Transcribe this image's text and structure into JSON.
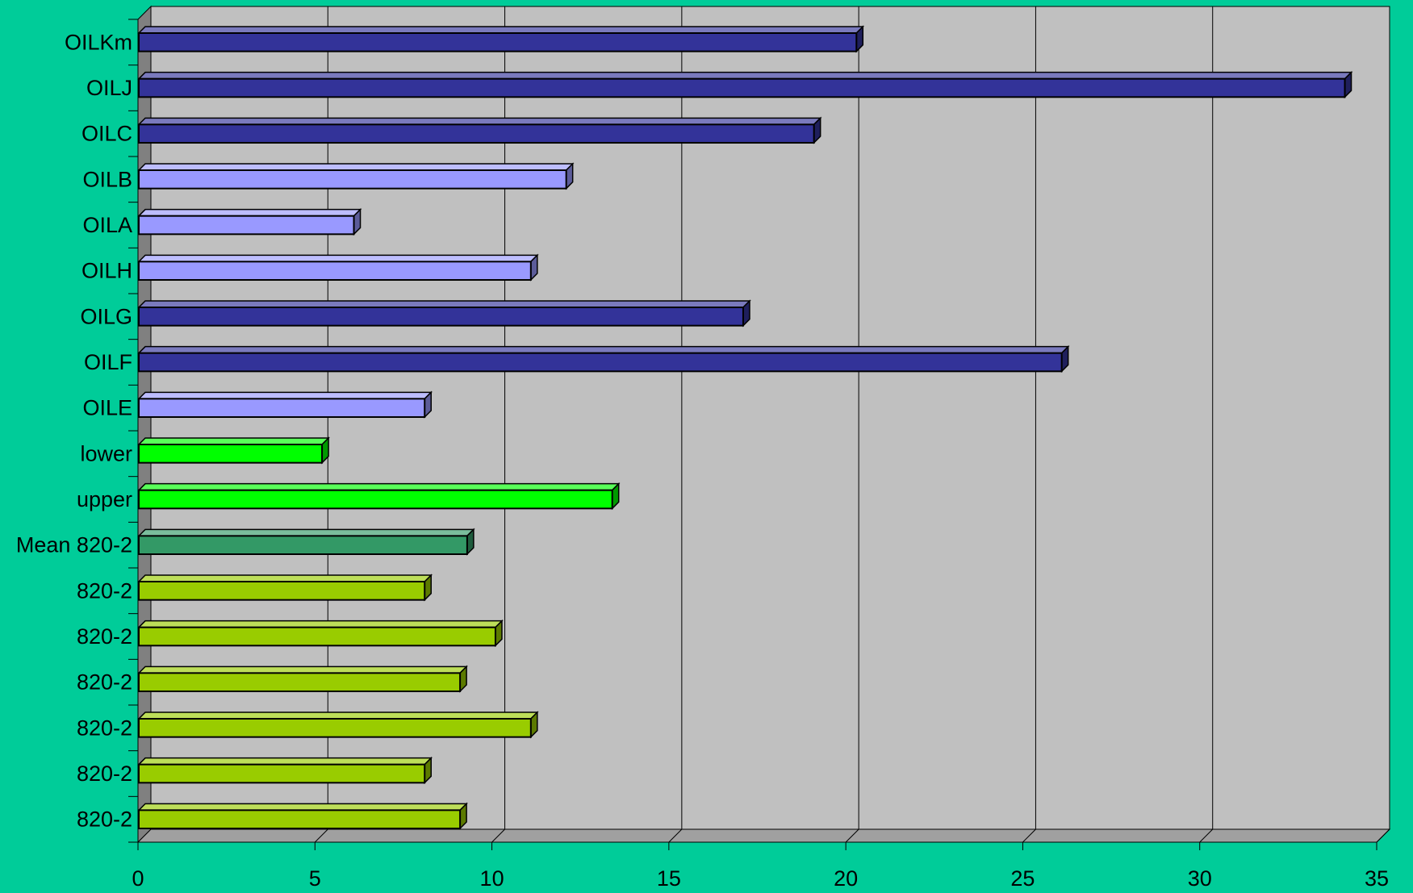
{
  "colors": {
    "page_background": "#00CC99",
    "plot_background": "#C0C0C0",
    "wall_side": "#808080",
    "floor": "#A0A0A0",
    "gridline": "#000000",
    "navy": "#333399",
    "periwinkle": "#9999FF",
    "bright_green": "#00FF00",
    "sea_green": "#339966",
    "yellow_green": "#99CC00"
  },
  "chart_data": {
    "type": "bar",
    "orientation": "horizontal",
    "three_d": true,
    "title": "",
    "xlabel": "",
    "ylabel": "",
    "xlim": [
      0,
      35
    ],
    "x_ticks": [
      0,
      5,
      10,
      15,
      20,
      25,
      30,
      35
    ],
    "vertical_gridlines": true,
    "legend": "none",
    "categories": [
      "OILKm",
      "OILJ",
      "OILC",
      "OILB",
      "OILA",
      "OILH",
      "OILG",
      "OILF",
      "OILE",
      "lower",
      "upper",
      "Mean 820-2",
      "820-2",
      "820-2",
      "820-2",
      "820-2",
      "820-2",
      "820-2"
    ],
    "values": [
      20.3,
      34.1,
      19.1,
      12.1,
      6.1,
      11.1,
      17.1,
      26.1,
      8.1,
      5.2,
      13.4,
      9.3,
      8.1,
      10.1,
      9.1,
      11.1,
      8.1,
      9.1
    ],
    "bar_colors": [
      "#333399",
      "#333399",
      "#333399",
      "#9999FF",
      "#9999FF",
      "#9999FF",
      "#333399",
      "#333399",
      "#9999FF",
      "#00FF00",
      "#00FF00",
      "#339966",
      "#99CC00",
      "#99CC00",
      "#99CC00",
      "#99CC00",
      "#99CC00",
      "#99CC00"
    ]
  }
}
